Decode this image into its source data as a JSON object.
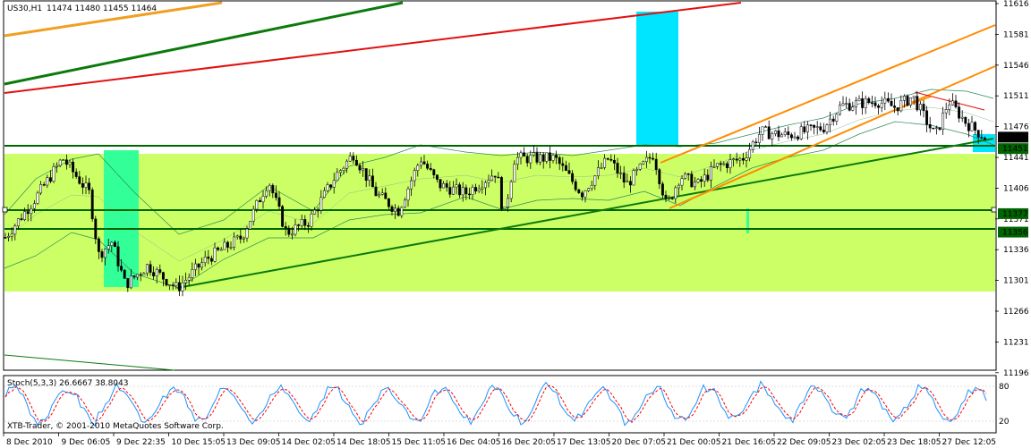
{
  "header": {
    "symbol": "US30,H1",
    "ohlc": "11474 11480 11455 11464"
  },
  "watermark": "XTB-Trader, © 2001-2010 MetaQuotes Software Corp.",
  "colors": {
    "background": "#ffffff",
    "candle": "#000000",
    "zone_fill": "#ccff66",
    "rect_aqua": "#00e5ff",
    "rect_green": "#33ff99",
    "hline": "#006400",
    "channel": "#ff8c00",
    "trend_green": "#0b7a0b",
    "trend_red": "#e21010",
    "envelope": "#2e8b57",
    "stoch_main": "#1e90ff",
    "stoch_signal": "#ff0000"
  },
  "chart_data": {
    "type": "candlestick",
    "y_ticks": [
      11616,
      11581,
      11546,
      11511,
      11476,
      11441,
      11406,
      11371,
      11336,
      11301,
      11266,
      11231,
      11196
    ],
    "ylim": [
      11190,
      11620
    ],
    "x_ticks": [
      "8 Dec 2010",
      "9 Dec 06:05",
      "9 Dec 22:35",
      "10 Dec 15:05",
      "13 Dec 09:05",
      "14 Dec 02:05",
      "14 Dec 18:05",
      "15 Dec 11:05",
      "16 Dec 04:05",
      "16 Dec 20:05",
      "17 Dec 13:05",
      "20 Dec 07:05",
      "21 Dec 00:05",
      "21 Dec 16:05",
      "22 Dec 09:05",
      "23 Dec 02:05",
      "23 Dec 18:05",
      "27 Dec 12:05"
    ],
    "price_labels": [
      {
        "label": "11464",
        "value": 11464,
        "style": "current"
      },
      {
        "label": "11451",
        "value": 11451,
        "style": "line"
      },
      {
        "label": "11377",
        "value": 11377,
        "style": "line"
      },
      {
        "label": "11356",
        "value": 11356,
        "style": "line"
      }
    ],
    "horizontal_lines": [
      11451,
      11377,
      11356
    ],
    "zone": {
      "from": 11283,
      "to": 11442
    },
    "rectangles": [
      {
        "color": "aqua",
        "start": "20 Dec 07:05",
        "price_from": 11451,
        "price_to": 11608
      },
      {
        "color": "green",
        "start": "9 Dec 06:05",
        "price_from": 11290,
        "price_to": 11446
      },
      {
        "color": "aqua",
        "start": "27 Dec 12:05",
        "price_from": 11437,
        "price_to": 11458
      }
    ],
    "trendlines": [
      {
        "color": "trend_green",
        "from": [
          "10 Dec 15:05",
          11291
        ],
        "to": [
          "27 Dec 12:05",
          11458
        ]
      },
      {
        "color": "channel",
        "from": [
          "20 Dec 07:05",
          11437
        ],
        "to": [
          "27 Dec 12:05",
          11592
        ]
      },
      {
        "color": "channel",
        "from": [
          "20 Dec 07:05",
          11384
        ],
        "to": [
          "27 Dec 12:05",
          11540
        ]
      },
      {
        "color": "trend_red",
        "from": [
          "23 Dec 02:05",
          11511
        ],
        "to": [
          "27 Dec 12:05",
          11486
        ]
      }
    ],
    "stochastic": {
      "label": "Stoch(5,3,3) 26.6667 38.8043",
      "levels": [
        80,
        20
      ],
      "main": 26.6667,
      "signal": 38.8043
    }
  }
}
